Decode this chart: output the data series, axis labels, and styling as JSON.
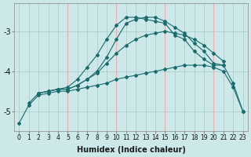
{
  "xlabel": "Humidex (Indice chaleur)",
  "bg_color": "#cce8e8",
  "grid_color_main": "#aad0d0",
  "grid_color_red": "#e8b0b0",
  "line_color": "#1a6b6b",
  "xlim": [
    -0.5,
    23.5
  ],
  "ylim": [
    -5.5,
    -2.3
  ],
  "yticks": [
    -5,
    -4,
    -3
  ],
  "xticks": [
    0,
    1,
    2,
    3,
    4,
    5,
    6,
    7,
    8,
    9,
    10,
    11,
    12,
    13,
    14,
    15,
    16,
    17,
    18,
    19,
    20,
    21,
    22,
    23
  ],
  "red_vlines": [
    5,
    10,
    15,
    20
  ],
  "series": [
    {
      "x": [
        1,
        2,
        3,
        4,
        5,
        6,
        7,
        8,
        9,
        10,
        11,
        12,
        13,
        14,
        15,
        16,
        17,
        18,
        19,
        20,
        21
      ],
      "y": [
        -4.8,
        -4.55,
        -4.5,
        -4.45,
        -4.4,
        -4.2,
        -3.9,
        -3.6,
        -3.2,
        -2.85,
        -2.65,
        -2.65,
        -2.7,
        -2.75,
        -2.8,
        -3.1,
        -3.2,
        -3.5,
        -3.7,
        -3.85,
        -3.85
      ]
    },
    {
      "x": [
        2,
        3,
        4,
        5,
        6,
        7,
        8,
        9,
        10,
        11,
        12,
        13,
        14,
        15,
        16,
        17,
        18,
        19,
        20,
        21,
        22,
        23
      ],
      "y": [
        -4.55,
        -4.5,
        -4.45,
        -4.45,
        -4.35,
        -4.2,
        -4.0,
        -3.65,
        -3.2,
        -2.8,
        -2.7,
        -2.65,
        -2.65,
        -2.75,
        -2.9,
        -3.05,
        -3.3,
        -3.5,
        -3.8,
        -3.85,
        -4.3,
        -5.0
      ]
    },
    {
      "x": [
        2,
        3,
        4,
        5,
        6,
        7,
        8,
        9,
        10,
        11,
        12,
        13,
        14,
        15,
        16,
        17,
        18,
        19,
        20,
        21
      ],
      "y": [
        -4.55,
        -4.5,
        -4.45,
        -4.45,
        -4.35,
        -4.2,
        -4.05,
        -3.8,
        -3.55,
        -3.35,
        -3.2,
        -3.1,
        -3.05,
        -3.0,
        -3.05,
        -3.1,
        -3.2,
        -3.35,
        -3.55,
        -3.75
      ]
    },
    {
      "x": [
        0,
        1,
        2,
        3,
        4,
        5,
        6,
        7,
        8,
        9,
        10,
        11,
        12,
        13,
        14,
        15,
        16,
        17,
        18,
        19,
        20,
        21,
        22,
        23
      ],
      "y": [
        -5.3,
        -4.85,
        -4.6,
        -4.55,
        -4.5,
        -4.5,
        -4.45,
        -4.4,
        -4.35,
        -4.3,
        -4.2,
        -4.15,
        -4.1,
        -4.05,
        -4.0,
        -3.95,
        -3.9,
        -3.85,
        -3.85,
        -3.85,
        -3.9,
        -4.0,
        -4.4,
        -5.0
      ]
    }
  ]
}
